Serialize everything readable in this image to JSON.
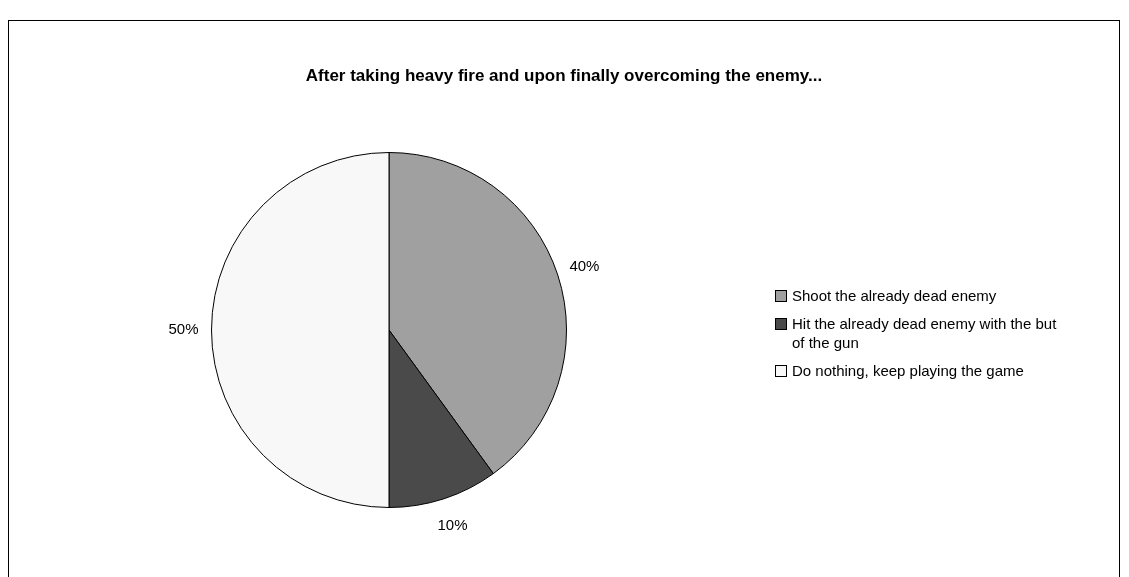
{
  "chart_data": {
    "type": "pie",
    "title": "After taking heavy fire and upon finally overcoming the enemy...",
    "categories": [
      "Shoot the already dead enemy",
      "Hit the already dead enemy with the but of the gun",
      "Do nothing, keep playing the game"
    ],
    "values": [
      40,
      10,
      50
    ],
    "colors": [
      "#a0a0a0",
      "#4a4a4a",
      "#f8f8f8"
    ],
    "value_labels": [
      "40%",
      "10%",
      "50%"
    ],
    "legend": "right"
  }
}
